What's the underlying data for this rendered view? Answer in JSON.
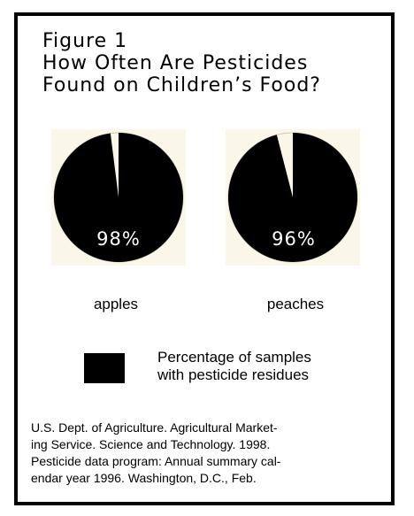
{
  "chart_data": {
    "type": "pie",
    "title_lines": [
      "Figure 1",
      "How Often Are Pesticides",
      "Found on Children’s Food?"
    ],
    "charts": [
      {
        "category": "apples",
        "value": 98,
        "value_label": "98%",
        "remainder": 2
      },
      {
        "category": "peaches",
        "value": 96,
        "value_label": "96%",
        "remainder": 4
      }
    ],
    "legend": {
      "text": "Percentage of samples\nwith pesticide residues",
      "swatch_color": "#000000",
      "placement": "bottom-center"
    },
    "colors": {
      "filled": "#000000",
      "remainder": "#fbf7e8",
      "background_square": "#fbf7e8"
    }
  },
  "source_lines": [
    "U.S. Dept. of Agriculture. Agricultural Market-",
    "ing Service. Science and Technology. 1998.",
    "Pesticide data program: Annual summary cal-",
    "endar year 1996. Washington, D.C., Feb."
  ]
}
